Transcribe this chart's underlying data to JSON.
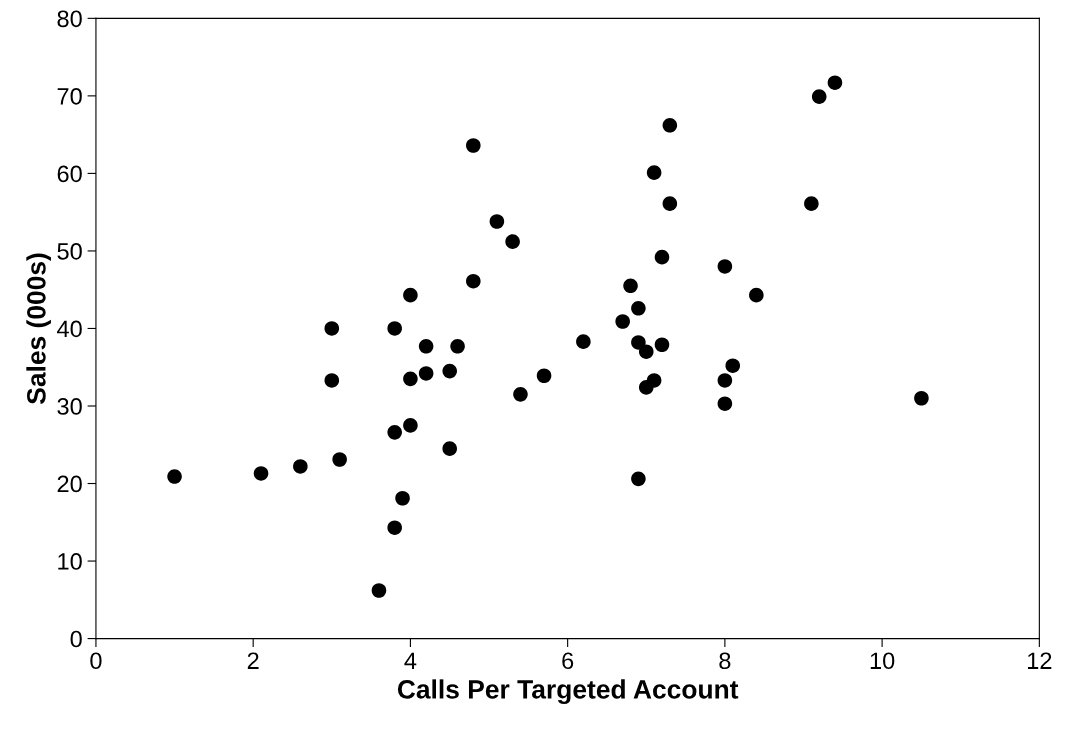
{
  "chart_data": {
    "type": "scatter",
    "xlabel": "Calls Per Targeted Account",
    "ylabel": "Sales (000s)",
    "x": [
      1.0,
      2.1,
      2.6,
      3.1,
      3.0,
      3.0,
      3.6,
      3.8,
      3.9,
      3.8,
      3.8,
      4.0,
      4.0,
      4.0,
      4.2,
      4.2,
      4.5,
      4.5,
      4.6,
      4.8,
      4.8,
      5.1,
      5.3,
      5.4,
      5.7,
      6.2,
      6.7,
      6.8,
      6.9,
      6.9,
      6.9,
      7.0,
      7.0,
      7.1,
      7.1,
      7.2,
      7.2,
      7.3,
      7.3,
      8.0,
      8.0,
      8.0,
      8.1,
      8.4,
      9.1,
      9.2,
      9.4,
      10.5
    ],
    "values": [
      20.9,
      21.3,
      22.2,
      23.1,
      33.3,
      40.0,
      6.2,
      14.3,
      18.1,
      26.6,
      40.0,
      27.5,
      33.5,
      44.3,
      34.2,
      37.7,
      24.5,
      34.5,
      37.7,
      63.6,
      46.1,
      53.8,
      51.2,
      31.5,
      33.9,
      38.3,
      40.9,
      45.5,
      38.2,
      42.6,
      20.6,
      32.4,
      37.0,
      60.1,
      33.3,
      37.9,
      49.2,
      56.1,
      66.2,
      33.3,
      30.3,
      48.0,
      35.2,
      44.3,
      56.1,
      69.9,
      71.7,
      31.0
    ],
    "color": "#000000",
    "marker": "circle",
    "xlim": [
      0,
      12
    ],
    "xticks": [
      0,
      2,
      4,
      6,
      8,
      10,
      12
    ],
    "ylim": [
      0,
      80
    ],
    "yticks": [
      0,
      10,
      20,
      30,
      40,
      50,
      60,
      70,
      80
    ],
    "grid": false,
    "legend": false
  }
}
